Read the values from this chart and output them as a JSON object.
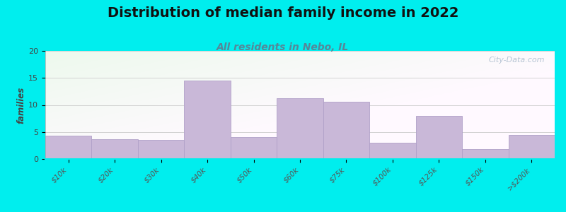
{
  "title": "Distribution of median family income in 2022",
  "subtitle": "All residents in Nebo, IL",
  "categories": [
    "$10k",
    "$20k",
    "$30k",
    "$40k",
    "$50k",
    "$60k",
    "$75k",
    "$100k",
    "$125k",
    "$150k",
    ">$200k"
  ],
  "values": [
    4.3,
    3.7,
    3.5,
    14.5,
    4.0,
    11.3,
    10.6,
    3.0,
    8.0,
    1.8,
    4.5
  ],
  "bar_color": "#c9b8d8",
  "bar_edge_color": "#b0a0c8",
  "outer_bg": "#00eeee",
  "ylabel": "families",
  "ylim": [
    0,
    20
  ],
  "yticks": [
    0,
    5,
    10,
    15,
    20
  ],
  "title_fontsize": 14,
  "subtitle_fontsize": 10,
  "subtitle_color": "#558899",
  "watermark": "City-Data.com",
  "watermark_color": "#aabbcc"
}
